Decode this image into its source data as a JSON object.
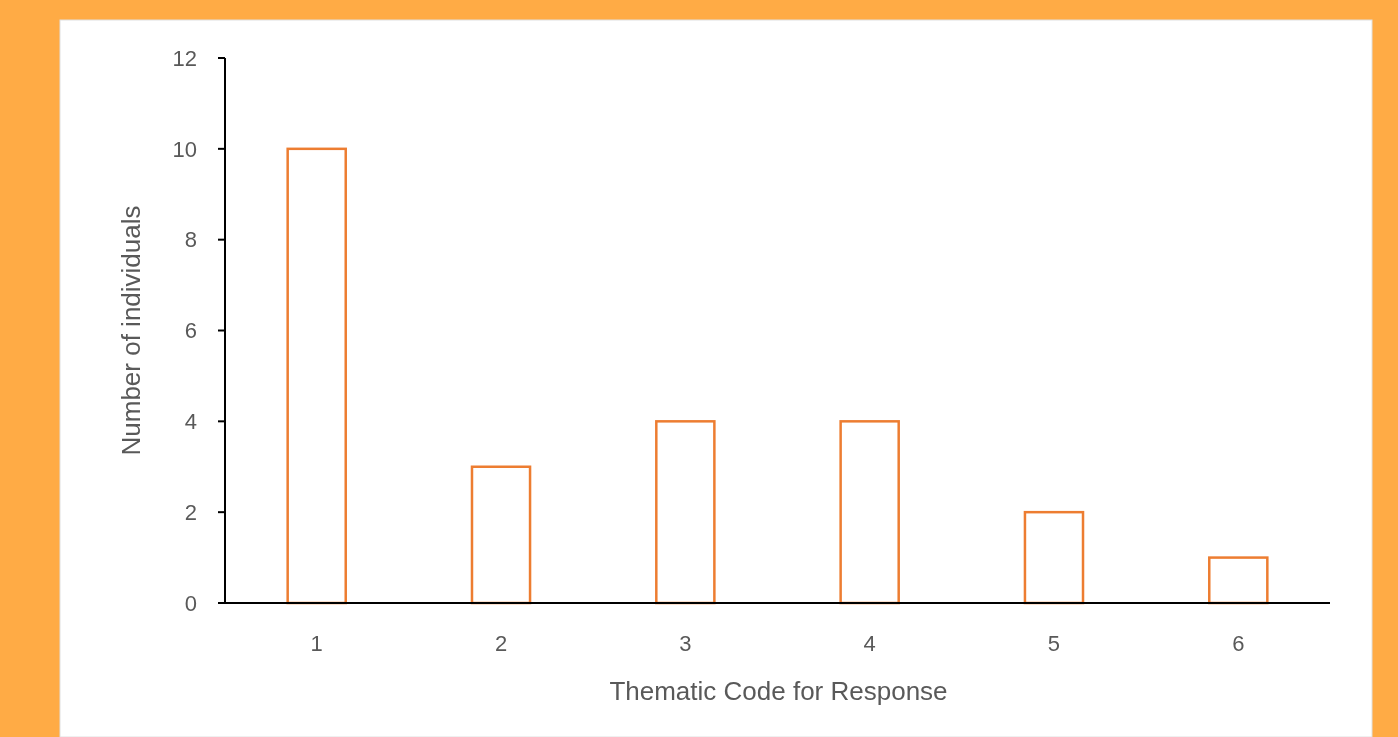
{
  "chart_data": {
    "type": "bar",
    "xlabel": "Thematic Code for Response",
    "ylabel": "Number of individuals",
    "categories": [
      "1",
      "2",
      "3",
      "4",
      "5",
      "6"
    ],
    "values": [
      10,
      3,
      4,
      4,
      2,
      1
    ],
    "color": "#ed7d31",
    "ylim": [
      0,
      12
    ],
    "yticks": [
      0,
      2,
      4,
      6,
      8,
      10,
      12
    ],
    "grid": false
  }
}
